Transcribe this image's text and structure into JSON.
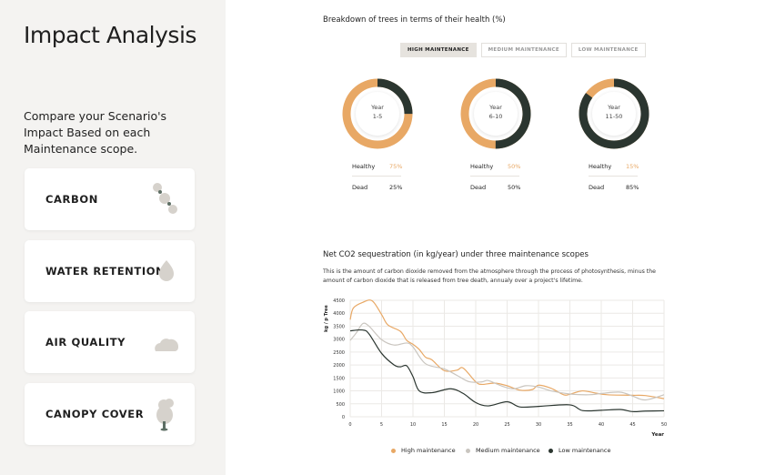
{
  "sidebar": {
    "title": "Impact Analysis",
    "subtitle": "Compare your Scenario's Impact Based on each Maintenance scope.",
    "cards": [
      {
        "label": "CARBON",
        "icon": "carbon-molecule-icon"
      },
      {
        "label": "WATER RETENTION",
        "icon": "water-drop-icon"
      },
      {
        "label": "AIR QUALITY",
        "icon": "cloud-icon"
      },
      {
        "label": "CANOPY COVER",
        "icon": "tree-icon"
      }
    ]
  },
  "health": {
    "title": "Breakdown of trees in terms of their health (%)",
    "tabs": [
      "HIGH MAINTENANCE",
      "MEDIUM MAINTENANCE",
      "LOW MAINTENANCE"
    ],
    "active_tab": 0,
    "healthy_label": "Healthy",
    "dead_label": "Dead",
    "donuts": [
      {
        "year_label": "Year",
        "period": "1-5",
        "healthy": 75,
        "dead": 25,
        "healthy_text": "75%",
        "dead_text": "25%"
      },
      {
        "year_label": "Year",
        "period": "6-10",
        "healthy": 50,
        "dead": 50,
        "healthy_text": "50%",
        "dead_text": "50%"
      },
      {
        "year_label": "Year",
        "period": "11-50",
        "healthy": 15,
        "dead": 85,
        "healthy_text": "15%",
        "dead_text": "85%"
      }
    ]
  },
  "colors": {
    "high": "#e8a865",
    "medium": "#c9c5bf",
    "low": "#2b3630",
    "healthy_text": "#e8a865"
  },
  "co2": {
    "title": "Net CO2 sequestration (in kg/year) under three maintenance scopes",
    "description": "This is the amount of carbon dioxide removed from the atmosphere through the process of photosynthesis, minus the amount of carbon dioxide that is released from tree death, annualy over a project's lifetime."
  },
  "chart_data": {
    "type": "line",
    "title": "Net CO2 sequestration (in kg/year) under three maintenance scopes",
    "xlabel": "Year",
    "ylabel": "kg / p Tree",
    "xlim": [
      0,
      50
    ],
    "ylim": [
      0,
      4500
    ],
    "xticks": [
      0,
      5,
      10,
      15,
      20,
      25,
      30,
      35,
      40,
      45,
      50
    ],
    "yticks": [
      0,
      500,
      1000,
      1500,
      2000,
      2500,
      3000,
      3500,
      4000,
      4500
    ],
    "grid": true,
    "legend": "bottom",
    "series": [
      {
        "name": "High maintenance",
        "color": "#e8a865",
        "points": [
          [
            0,
            3750
          ],
          [
            0.5,
            4200
          ],
          [
            2,
            4420
          ],
          [
            3.5,
            4480
          ],
          [
            5,
            3950
          ],
          [
            6,
            3550
          ],
          [
            8,
            3300
          ],
          [
            9,
            2950
          ],
          [
            10,
            2800
          ],
          [
            11,
            2600
          ],
          [
            12,
            2300
          ],
          [
            13,
            2200
          ],
          [
            15,
            1780
          ],
          [
            17,
            1800
          ],
          [
            18,
            1880
          ],
          [
            20,
            1350
          ],
          [
            21,
            1250
          ],
          [
            23,
            1300
          ],
          [
            25,
            1200
          ],
          [
            27,
            1030
          ],
          [
            29,
            1050
          ],
          [
            30,
            1220
          ],
          [
            32,
            1100
          ],
          [
            34,
            850
          ],
          [
            35,
            870
          ],
          [
            37,
            1000
          ],
          [
            39,
            920
          ],
          [
            41,
            850
          ],
          [
            45,
            830
          ],
          [
            47,
            820
          ],
          [
            50,
            700
          ]
        ]
      },
      {
        "name": "Medium maintenance",
        "color": "#c9c5bf",
        "points": [
          [
            0,
            2950
          ],
          [
            1,
            3250
          ],
          [
            2,
            3600
          ],
          [
            3,
            3500
          ],
          [
            5,
            2980
          ],
          [
            7,
            2770
          ],
          [
            9,
            2850
          ],
          [
            10,
            2700
          ],
          [
            12,
            2050
          ],
          [
            15,
            1850
          ],
          [
            17,
            1600
          ],
          [
            19,
            1350
          ],
          [
            21,
            1350
          ],
          [
            22,
            1400
          ],
          [
            24,
            1200
          ],
          [
            26,
            1080
          ],
          [
            28,
            1200
          ],
          [
            30,
            1150
          ],
          [
            32,
            1000
          ],
          [
            35,
            880
          ],
          [
            38,
            850
          ],
          [
            40,
            900
          ],
          [
            43,
            950
          ],
          [
            45,
            800
          ],
          [
            47,
            650
          ],
          [
            50,
            850
          ]
        ]
      },
      {
        "name": "Low maintenance",
        "color": "#2b3630",
        "points": [
          [
            0,
            3320
          ],
          [
            2,
            3350
          ],
          [
            3,
            3200
          ],
          [
            5,
            2450
          ],
          [
            7,
            2000
          ],
          [
            8,
            1930
          ],
          [
            9,
            1970
          ],
          [
            10,
            1550
          ],
          [
            11,
            1000
          ],
          [
            13,
            930
          ],
          [
            16,
            1080
          ],
          [
            18,
            900
          ],
          [
            20,
            550
          ],
          [
            22,
            420
          ],
          [
            25,
            580
          ],
          [
            27,
            380
          ],
          [
            30,
            400
          ],
          [
            35,
            460
          ],
          [
            37,
            240
          ],
          [
            40,
            250
          ],
          [
            43,
            280
          ],
          [
            45,
            200
          ],
          [
            47,
            220
          ],
          [
            50,
            230
          ]
        ]
      }
    ]
  }
}
